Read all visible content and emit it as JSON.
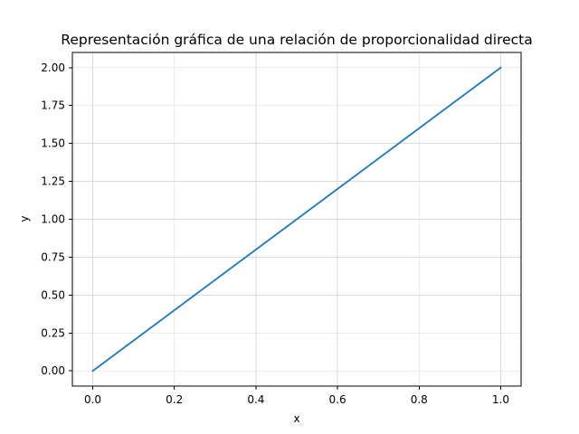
{
  "chart_data": {
    "type": "line",
    "title": "Representación gráfica de una relación de proporcionalidad directa",
    "xlabel": "x",
    "ylabel": "y",
    "xlim": [
      -0.05,
      1.05
    ],
    "ylim": [
      -0.1,
      2.1
    ],
    "x_ticks": [
      0.0,
      0.2,
      0.4,
      0.6,
      0.8,
      1.0
    ],
    "x_tick_labels": [
      "0.0",
      "0.2",
      "0.4",
      "0.6",
      "0.8",
      "1.0"
    ],
    "y_ticks": [
      0.0,
      0.25,
      0.5,
      0.75,
      1.0,
      1.25,
      1.5,
      1.75,
      2.0
    ],
    "y_tick_labels": [
      "0.00",
      "0.25",
      "0.50",
      "0.75",
      "1.00",
      "1.25",
      "1.50",
      "1.75",
      "2.00"
    ],
    "grid": true,
    "series": [
      {
        "x": [
          0.0,
          1.0
        ],
        "y": [
          0.0,
          2.0
        ],
        "color": "#1f77b4"
      }
    ]
  }
}
